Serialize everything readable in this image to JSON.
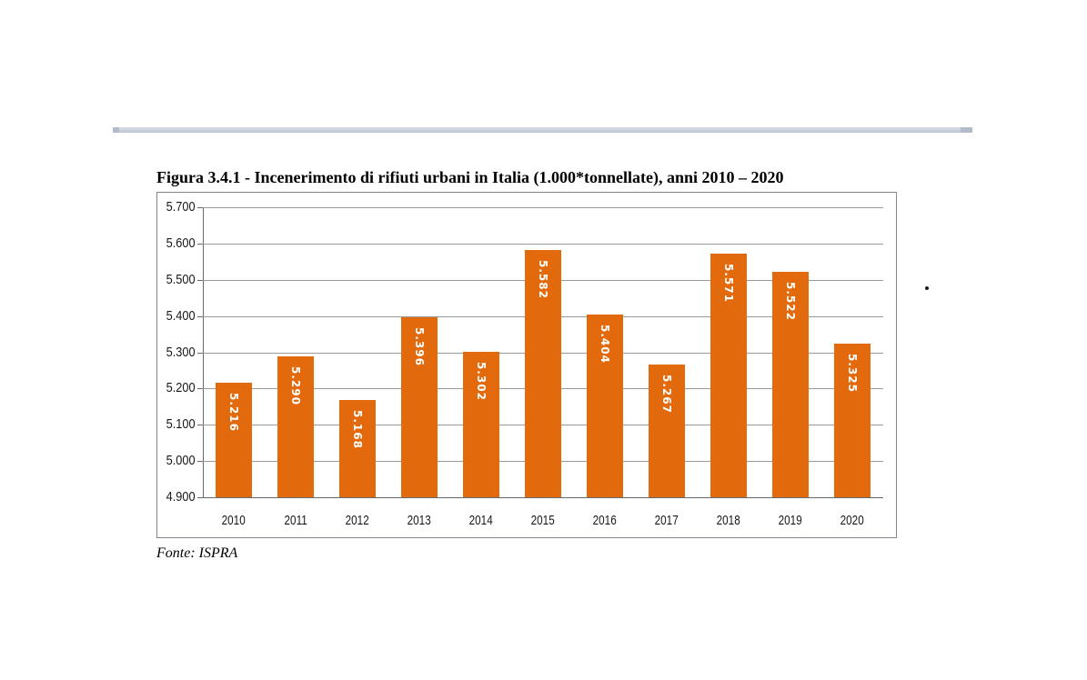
{
  "figure": {
    "title": "Figura 3.4.1 - Incenerimento di rifiuti urbani in Italia (1.000*tonnellate), anni 2010 – 2020",
    "source": "Fonte: ISPRA"
  },
  "chart_data": {
    "type": "bar",
    "title": "Figura 3.4.1 - Incenerimento di rifiuti urbani in Italia (1.000*tonnellate), anni 2010 – 2020",
    "categories": [
      "2010",
      "2011",
      "2012",
      "2013",
      "2014",
      "2015",
      "2016",
      "2017",
      "2018",
      "2019",
      "2020"
    ],
    "values": [
      5216,
      5290,
      5168,
      5396,
      5302,
      5582,
      5404,
      5267,
      5571,
      5522,
      5325
    ],
    "value_labels": [
      "5.216",
      "5.290",
      "5.168",
      "5.396",
      "5.302",
      "5.582",
      "5.404",
      "5.267",
      "5.571",
      "5.522",
      "5.325"
    ],
    "unit": "1.000*tonnellate",
    "xlabel": "",
    "ylabel": "",
    "ylim": [
      4900,
      5700
    ],
    "ytick_step": 100,
    "ytick_labels_top_to_bottom": [
      "5.700",
      "5.600",
      "5.500",
      "5.400",
      "5.300",
      "5.200",
      "5.100",
      "5.000",
      "4.900"
    ],
    "grid": true,
    "legend": false,
    "bar_color": "#E36A0C",
    "bar_label_color": "#FFFFFF",
    "gridline_color": "#97999C",
    "axis_color": "#66696D",
    "source": "Fonte: ISPRA"
  },
  "decorations": {
    "divider_color": "#C5CBD8",
    "stray_dot": "."
  }
}
